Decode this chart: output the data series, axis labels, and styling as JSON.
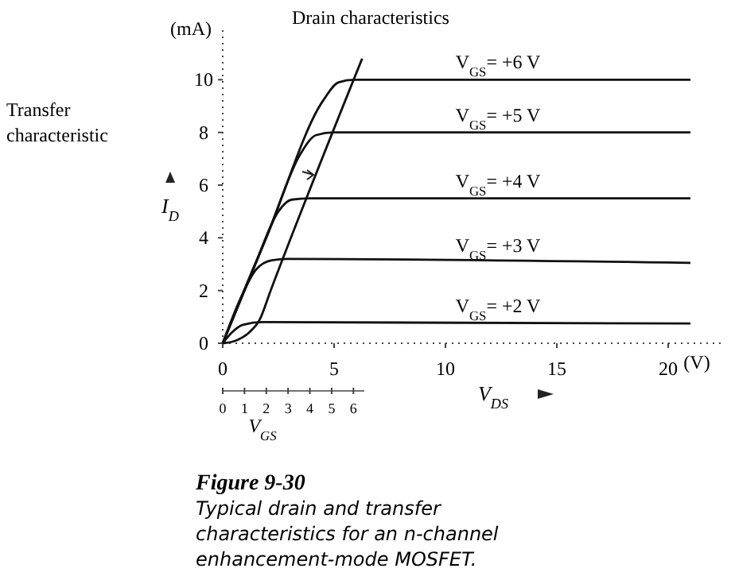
{
  "chart_data": {
    "type": "line",
    "title": "Drain characteristics",
    "xlabel": "V$_{DS}$",
    "ylabel": "I$_{D}$",
    "x2label": "V$_{GS}$",
    "xlim": [
      0,
      22.5
    ],
    "xticks": [
      0,
      5,
      10,
      15,
      20
    ],
    "ylim": [
      0,
      12
    ],
    "yticks": [
      0,
      2,
      4,
      6,
      8,
      10
    ],
    "x2lim": [
      0,
      6.5
    ],
    "x2ticks": [
      0,
      1,
      2,
      3,
      4,
      5,
      6
    ],
    "grid": false,
    "marker": "none",
    "line_style": "solid",
    "annotations": [
      "(mA)",
      "(V)",
      "Transfer characteristic",
      "Figure 9-30",
      "Typical drain and transfer",
      "characteristics for an n-channel",
      "enhancement-mode MOSFET."
    ],
    "series": [
      {
        "name": "V$_{GS}$= +6 V",
        "color": "#111111",
        "x": [
          0,
          2,
          4.5,
          5.2,
          5.9,
          21
        ],
        "values": [
          0,
          4.1,
          9.2,
          9.9,
          10,
          10
        ]
      },
      {
        "name": "V$_{GS}$= +5 V",
        "color": "#111111",
        "x": [
          0,
          2,
          3.5,
          4.2,
          5,
          21
        ],
        "values": [
          0,
          4.1,
          7.2,
          7.9,
          8,
          8
        ]
      },
      {
        "name": "V$_{GS}$= +4 V",
        "color": "#111111",
        "x": [
          0,
          1.5,
          2.5,
          3.1,
          3.9,
          21
        ],
        "values": [
          0,
          3.1,
          5,
          5.45,
          5.5,
          5.5
        ]
      },
      {
        "name": "V$_{GS}$= +3 V",
        "color": "#111111",
        "x": [
          0,
          0.8,
          1.5,
          2.2,
          2.9,
          21
        ],
        "values": [
          0,
          1.7,
          2.8,
          3.15,
          3.2,
          3.05
        ]
      },
      {
        "name": "V$_{GS}$= +2  V",
        "color": "#111111",
        "x": [
          0,
          0.4,
          0.9,
          1.8,
          21
        ],
        "values": [
          0,
          0.4,
          0.7,
          0.8,
          0.75
        ]
      },
      {
        "color": "#111111",
        "axis": "x2",
        "x": [
          0,
          0.6,
          1.2,
          1.7,
          2.2,
          6.4
        ],
        "values": [
          0,
          0.1,
          0.4,
          0.9,
          2,
          10.8
        ]
      }
    ]
  }
}
